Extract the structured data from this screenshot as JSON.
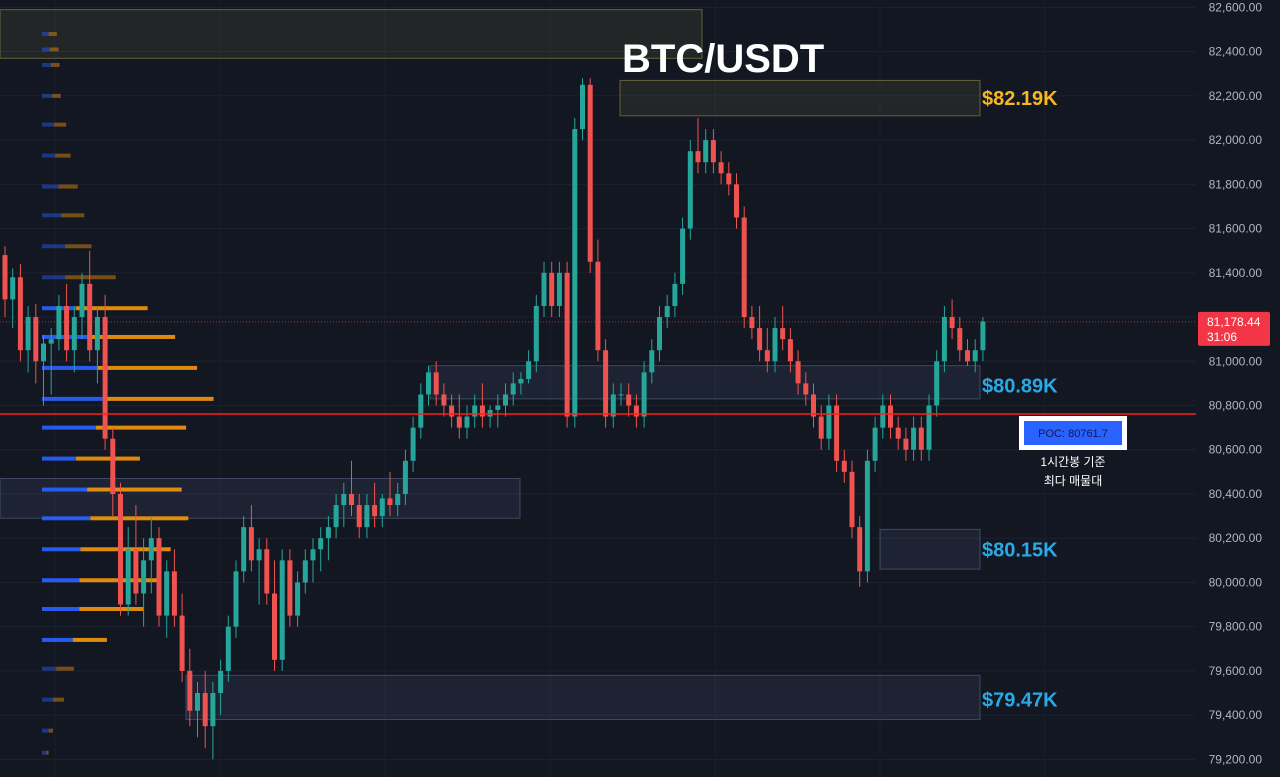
{
  "chart_data": {
    "type": "candlestick",
    "title": "BTC/USDT",
    "ylim": [
      79170,
      82620
    ],
    "y_ticks": [
      79200,
      79400,
      79600,
      79800,
      80000,
      80200,
      80400,
      80600,
      80800,
      81000,
      81200,
      81400,
      81600,
      81800,
      82000,
      82200,
      82400,
      82600
    ],
    "y_tick_labels": [
      "79,200.00",
      "79,400.00",
      "79,600.00",
      "79,800.00",
      "80,000.00",
      "80,200.00",
      "80,400.00",
      "80,600.00",
      "80,800.00",
      "81,000.00",
      "81,200.00",
      "81,400.00",
      "81,600.00",
      "81,800.00",
      "82,000.00",
      "82,200.00",
      "82,400.00",
      "82,600.00"
    ],
    "grid": true,
    "colors": {
      "background": "#131722",
      "up": "#26a69a",
      "down": "#ef5350",
      "poc_line": "#ff1e1e",
      "profile_buy": "#2962ff",
      "profile_sell": "#f0950c",
      "label_gold": "#f5b820",
      "label_blue": "#29a9e6",
      "price_tag": "#f23645"
    },
    "current_price": {
      "value": 81178.44,
      "label": "81,178.44",
      "countdown": "31:06"
    },
    "poc": {
      "value": 80761.7,
      "label": "POC: 80761.7",
      "note_line1": "1시간봉 기준",
      "note_line2": "최다 매물대"
    },
    "levels": [
      {
        "label": "$82.19K",
        "value": 82190,
        "low": 82110,
        "high": 82270,
        "color": "gold"
      },
      {
        "label": "$80.89K",
        "value": 80890,
        "low": 80830,
        "high": 80980,
        "color": "blue"
      },
      {
        "label": "$80.15K",
        "value": 80150,
        "low": 80060,
        "high": 80240,
        "color": "blue"
      },
      {
        "label": "$79.47K",
        "value": 79470,
        "low": 79380,
        "high": 79580,
        "color": "blue"
      }
    ],
    "zones": [
      {
        "low": 82370,
        "high": 82590,
        "tint": "gold"
      },
      {
        "low": 80290,
        "high": 80470,
        "tint": "blue"
      }
    ],
    "volume_profile": [
      {
        "price": 82480,
        "buy": 12,
        "sell": 15
      },
      {
        "price": 82410,
        "buy": 14,
        "sell": 16
      },
      {
        "price": 82340,
        "buy": 16,
        "sell": 16
      },
      {
        "price": 82200,
        "buy": 18,
        "sell": 16
      },
      {
        "price": 82070,
        "buy": 22,
        "sell": 22
      },
      {
        "price": 81930,
        "buy": 24,
        "sell": 28
      },
      {
        "price": 81790,
        "buy": 30,
        "sell": 35
      },
      {
        "price": 81660,
        "buy": 35,
        "sell": 42
      },
      {
        "price": 81520,
        "buy": 42,
        "sell": 48
      },
      {
        "price": 81380,
        "buy": 42,
        "sell": 92
      },
      {
        "price": 81240,
        "buy": 62,
        "sell": 130
      },
      {
        "price": 81110,
        "buy": 84,
        "sell": 158
      },
      {
        "price": 80970,
        "buy": 100,
        "sell": 182
      },
      {
        "price": 80830,
        "buy": 112,
        "sell": 200
      },
      {
        "price": 80700,
        "buy": 98,
        "sell": 164
      },
      {
        "price": 80560,
        "buy": 62,
        "sell": 116
      },
      {
        "price": 80420,
        "buy": 82,
        "sell": 172
      },
      {
        "price": 80290,
        "buy": 88,
        "sell": 178
      },
      {
        "price": 80150,
        "buy": 70,
        "sell": 164
      },
      {
        "price": 80010,
        "buy": 68,
        "sell": 142
      },
      {
        "price": 79880,
        "buy": 68,
        "sell": 116
      },
      {
        "price": 79740,
        "buy": 56,
        "sell": 62
      },
      {
        "price": 79610,
        "buy": 26,
        "sell": 32
      },
      {
        "price": 79470,
        "buy": 20,
        "sell": 20
      },
      {
        "price": 79330,
        "buy": 12,
        "sell": 8
      },
      {
        "price": 79230,
        "buy": 8,
        "sell": 4
      }
    ],
    "candles": [
      [
        81480,
        81520,
        81200,
        81280
      ],
      [
        81280,
        81420,
        81150,
        81380
      ],
      [
        81380,
        81440,
        81000,
        81050
      ],
      [
        81050,
        81250,
        80950,
        81200
      ],
      [
        81200,
        81260,
        80900,
        81000
      ],
      [
        81000,
        81120,
        80800,
        81080
      ],
      [
        81080,
        81150,
        80850,
        81100
      ],
      [
        81100,
        81300,
        81050,
        81250
      ],
      [
        81250,
        81350,
        81000,
        81050
      ],
      [
        81050,
        81250,
        80950,
        81200
      ],
      [
        81200,
        81400,
        81100,
        81350
      ],
      [
        81350,
        81500,
        81000,
        81050
      ],
      [
        81050,
        81250,
        80900,
        81200
      ],
      [
        81200,
        81300,
        80600,
        80650
      ],
      [
        80650,
        80700,
        80300,
        80400
      ],
      [
        80400,
        80450,
        79850,
        79900
      ],
      [
        79900,
        80250,
        79850,
        80150
      ],
      [
        80150,
        80350,
        79900,
        79950
      ],
      [
        79950,
        80200,
        79800,
        80100
      ],
      [
        80100,
        80300,
        79950,
        80200
      ],
      [
        80200,
        80250,
        79800,
        79850
      ],
      [
        79850,
        80100,
        79750,
        80050
      ],
      [
        80050,
        80150,
        79800,
        79850
      ],
      [
        79850,
        79950,
        79550,
        79600
      ],
      [
        79600,
        79700,
        79350,
        79420
      ],
      [
        79420,
        79550,
        79300,
        79500
      ],
      [
        79500,
        79600,
        79250,
        79350
      ],
      [
        79350,
        79550,
        79200,
        79500
      ],
      [
        79500,
        79650,
        79400,
        79600
      ],
      [
        79600,
        79850,
        79550,
        79800
      ],
      [
        79800,
        80100,
        79750,
        80050
      ],
      [
        80050,
        80300,
        80000,
        80250
      ],
      [
        80250,
        80350,
        80050,
        80100
      ],
      [
        80100,
        80200,
        79900,
        80150
      ],
      [
        80150,
        80200,
        79900,
        79950
      ],
      [
        79950,
        80100,
        79600,
        79650
      ],
      [
        79650,
        80150,
        79600,
        80100
      ],
      [
        80100,
        80150,
        79800,
        79850
      ],
      [
        79850,
        80050,
        79800,
        80000
      ],
      [
        80000,
        80150,
        79950,
        80100
      ],
      [
        80100,
        80200,
        80000,
        80150
      ],
      [
        80150,
        80250,
        80050,
        80200
      ],
      [
        80200,
        80300,
        80100,
        80250
      ],
      [
        80250,
        80400,
        80200,
        80350
      ],
      [
        80350,
        80450,
        80250,
        80400
      ],
      [
        80400,
        80550,
        80300,
        80350
      ],
      [
        80350,
        80400,
        80200,
        80250
      ],
      [
        80250,
        80400,
        80200,
        80350
      ],
      [
        80350,
        80450,
        80250,
        80300
      ],
      [
        80300,
        80400,
        80250,
        80380
      ],
      [
        80380,
        80500,
        80300,
        80350
      ],
      [
        80350,
        80450,
        80300,
        80400
      ],
      [
        80400,
        80600,
        80350,
        80550
      ],
      [
        80550,
        80750,
        80500,
        80700
      ],
      [
        80700,
        80900,
        80650,
        80850
      ],
      [
        80850,
        80980,
        80800,
        80950
      ],
      [
        80950,
        81000,
        80800,
        80850
      ],
      [
        80850,
        80900,
        80750,
        80800
      ],
      [
        80800,
        80850,
        80700,
        80750
      ],
      [
        80750,
        80850,
        80650,
        80700
      ],
      [
        80700,
        80800,
        80650,
        80750
      ],
      [
        80750,
        80850,
        80700,
        80800
      ],
      [
        80800,
        80900,
        80700,
        80750
      ],
      [
        80750,
        80800,
        80700,
        80780
      ],
      [
        80780,
        80850,
        80700,
        80800
      ],
      [
        80800,
        80900,
        80750,
        80850
      ],
      [
        80850,
        80950,
        80800,
        80900
      ],
      [
        80900,
        80950,
        80850,
        80920
      ],
      [
        80920,
        81050,
        80900,
        81000
      ],
      [
        81000,
        81300,
        80950,
        81250
      ],
      [
        81250,
        81450,
        81200,
        81400
      ],
      [
        81400,
        81450,
        81200,
        81250
      ],
      [
        81250,
        81450,
        81200,
        81400
      ],
      [
        81400,
        81450,
        80700,
        80750
      ],
      [
        80750,
        82100,
        80700,
        82050
      ],
      [
        82050,
        82280,
        82000,
        82250
      ],
      [
        82250,
        82280,
        81400,
        81450
      ],
      [
        81450,
        81550,
        81000,
        81050
      ],
      [
        81050,
        81100,
        80700,
        80750
      ],
      [
        80750,
        80900,
        80700,
        80850
      ],
      [
        80850,
        80900,
        80800,
        80850
      ],
      [
        80850,
        80900,
        80750,
        80800
      ],
      [
        80800,
        80850,
        80700,
        80750
      ],
      [
        80750,
        81000,
        80700,
        80950
      ],
      [
        80950,
        81100,
        80900,
        81050
      ],
      [
        81050,
        81250,
        81000,
        81200
      ],
      [
        81200,
        81300,
        81150,
        81250
      ],
      [
        81250,
        81400,
        81200,
        81350
      ],
      [
        81350,
        81650,
        81300,
        81600
      ],
      [
        81600,
        82000,
        81550,
        81950
      ],
      [
        81950,
        82100,
        81850,
        81900
      ],
      [
        81900,
        82050,
        81850,
        82000
      ],
      [
        82000,
        82050,
        81850,
        81900
      ],
      [
        81900,
        81950,
        81800,
        81850
      ],
      [
        81850,
        81900,
        81750,
        81800
      ],
      [
        81800,
        81850,
        81600,
        81650
      ],
      [
        81650,
        81700,
        81150,
        81200
      ],
      [
        81200,
        81250,
        81100,
        81150
      ],
      [
        81150,
        81250,
        81000,
        81050
      ],
      [
        81050,
        81150,
        80950,
        81000
      ],
      [
        81000,
        81200,
        80950,
        81150
      ],
      [
        81150,
        81250,
        81050,
        81100
      ],
      [
        81100,
        81150,
        80950,
        81000
      ],
      [
        81000,
        81050,
        80850,
        80900
      ],
      [
        80900,
        80950,
        80800,
        80850
      ],
      [
        80850,
        80900,
        80700,
        80750
      ],
      [
        80750,
        80800,
        80600,
        80650
      ],
      [
        80650,
        80850,
        80600,
        80800
      ],
      [
        80800,
        80850,
        80500,
        80550
      ],
      [
        80550,
        80600,
        80450,
        80500
      ],
      [
        80500,
        80550,
        80200,
        80250
      ],
      [
        80250,
        80300,
        79980,
        80050
      ],
      [
        80050,
        80600,
        80000,
        80550
      ],
      [
        80550,
        80750,
        80500,
        80700
      ],
      [
        80700,
        80850,
        80650,
        80800
      ],
      [
        80800,
        80850,
        80650,
        80700
      ],
      [
        80700,
        80750,
        80600,
        80650
      ],
      [
        80650,
        80700,
        80550,
        80600
      ],
      [
        80600,
        80750,
        80550,
        80700
      ],
      [
        80700,
        80750,
        80550,
        80600
      ],
      [
        80600,
        80850,
        80550,
        80800
      ],
      [
        80800,
        81050,
        80750,
        81000
      ],
      [
        81000,
        81250,
        80950,
        81200
      ],
      [
        81200,
        81280,
        81100,
        81150
      ],
      [
        81150,
        81200,
        81000,
        81050
      ],
      [
        81050,
        81100,
        80980,
        81000
      ],
      [
        81000,
        81100,
        80950,
        81050
      ],
      [
        81050,
        81200,
        81000,
        81180
      ]
    ]
  }
}
